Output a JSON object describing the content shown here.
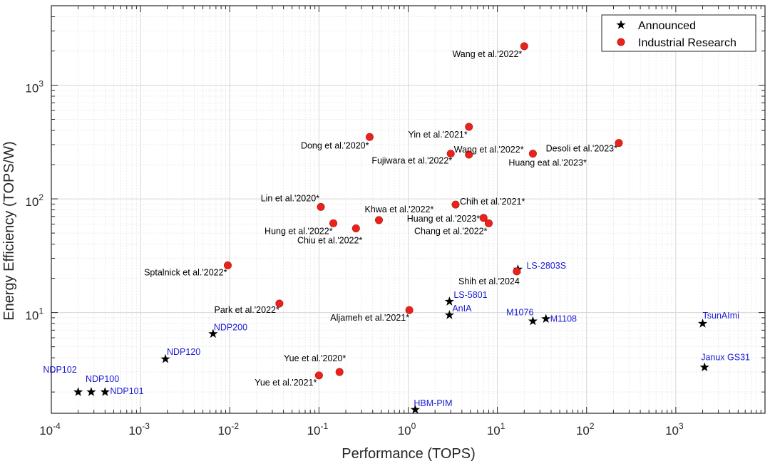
{
  "chart_data": {
    "type": "scatter",
    "title": "",
    "xlabel": "Performance (TOPS)",
    "ylabel": "Energy Efficiency (TOPS/W)",
    "xscale": "log",
    "yscale": "log",
    "xlim": [
      0.0001,
      10000
    ],
    "ylim": [
      1.3,
      5000
    ],
    "grid": true,
    "minor_grid": true,
    "x_ticks": [
      {
        "base": "10",
        "exp": "-4",
        "value": 0.0001
      },
      {
        "base": "10",
        "exp": "-3",
        "value": 0.001
      },
      {
        "base": "10",
        "exp": "-2",
        "value": 0.01
      },
      {
        "base": "10",
        "exp": "-1",
        "value": 0.1
      },
      {
        "base": "10",
        "exp": "0",
        "value": 1
      },
      {
        "base": "10",
        "exp": "1",
        "value": 10
      },
      {
        "base": "10",
        "exp": "2",
        "value": 100
      },
      {
        "base": "10",
        "exp": "3",
        "value": 1000
      }
    ],
    "y_ticks": [
      {
        "base": "10",
        "exp": "1",
        "value": 10
      },
      {
        "base": "10",
        "exp": "2",
        "value": 100
      },
      {
        "base": "10",
        "exp": "3",
        "value": 1000
      }
    ],
    "legend": {
      "position": "top-right",
      "entries": [
        {
          "label": "Announced",
          "marker": "star",
          "color": "#000000"
        },
        {
          "label": "Industrial Research",
          "marker": "circle",
          "color": "#e8231b"
        }
      ]
    },
    "series": [
      {
        "name": "Announced",
        "marker": "star",
        "color": "#000000",
        "label_color": "#1a1ad6",
        "points": [
          {
            "label": "NDP102",
            "x": 0.0002,
            "y": 2.0,
            "anchor": "end",
            "dx": -2,
            "dy": -27
          },
          {
            "label": "NDP100",
            "x": 0.00028,
            "y": 2.0,
            "anchor": "start",
            "dx": -8,
            "dy": -14
          },
          {
            "label": "NDP101",
            "x": 0.0004,
            "y": 2.0,
            "anchor": "start",
            "dx": 7,
            "dy": 3
          },
          {
            "label": "NDP120",
            "x": 0.0019,
            "y": 3.9,
            "anchor": "start",
            "dx": 2,
            "dy": -6
          },
          {
            "label": "NDP200",
            "x": 0.0065,
            "y": 6.5,
            "anchor": "start",
            "dx": 1,
            "dy": -5
          },
          {
            "label": "HBM-PIM",
            "x": 1.2,
            "y": 1.4,
            "anchor": "start",
            "dx": -2,
            "dy": -5
          },
          {
            "label": "LS-5801",
            "x": 2.9,
            "y": 12.5,
            "anchor": "start",
            "dx": 6,
            "dy": -5
          },
          {
            "label": "AnIA",
            "x": 2.9,
            "y": 9.5,
            "anchor": "start",
            "dx": 4,
            "dy": -5
          },
          {
            "label": "LS-2803S",
            "x": 17,
            "y": 24,
            "anchor": "start",
            "dx": 12,
            "dy": -1
          },
          {
            "label": "M1076",
            "x": 25,
            "y": 8.4,
            "anchor": "end",
            "dx": 1,
            "dy": -8
          },
          {
            "label": "M1108",
            "x": 35,
            "y": 8.8,
            "anchor": "start",
            "dx": 6,
            "dy": 4
          },
          {
            "label": "TsunAImi",
            "x": 2000,
            "y": 8.0,
            "anchor": "start",
            "dx": 0,
            "dy": -7
          },
          {
            "label": "Janux GS31",
            "x": 2100,
            "y": 3.3,
            "anchor": "start",
            "dx": -5,
            "dy": -10
          }
        ]
      },
      {
        "name": "Industrial Research",
        "marker": "circle",
        "color": "#e8231b",
        "label_color": "#000000",
        "points": [
          {
            "label": "Wang et al.'2022*",
            "x": 20,
            "y": 2200,
            "anchor": "end",
            "dx": -3,
            "dy": 15
          },
          {
            "label": "Dong et al.'2020*",
            "x": 0.37,
            "y": 350,
            "anchor": "end",
            "dx": -1,
            "dy": 16
          },
          {
            "label": "Yin et al.'2021*",
            "x": 4.8,
            "y": 430,
            "anchor": "end",
            "dx": -2,
            "dy": 15
          },
          {
            "label": "Fujiwara et al.'2022*",
            "x": 3.0,
            "y": 250,
            "anchor": "end",
            "dx": 2,
            "dy": 14
          },
          {
            "label": "Wang et al.'2022*",
            "x": 4.8,
            "y": 245,
            "anchor": "start",
            "dx": -21,
            "dy": -3
          },
          {
            "label": "Desoli et al.'2023*",
            "x": 230,
            "y": 310,
            "anchor": "end",
            "dx": -2,
            "dy": 12
          },
          {
            "label": "Huang eat al.'2023*",
            "x": 25,
            "y": 250,
            "anchor": "start",
            "dx": -34,
            "dy": 17
          },
          {
            "label": "Lin et al.'2020*",
            "x": 0.105,
            "y": 85,
            "anchor": "end",
            "dx": -2,
            "dy": -8
          },
          {
            "label": "Hung et al.'2022*",
            "x": 0.145,
            "y": 61,
            "anchor": "end",
            "dx": -1,
            "dy": 15
          },
          {
            "label": "Chiu et al.'2022*",
            "x": 0.26,
            "y": 55,
            "anchor": "end",
            "dx": 9,
            "dy": 21
          },
          {
            "label": "Khwa et al.'2022*",
            "x": 0.47,
            "y": 65,
            "anchor": "start",
            "dx": -20,
            "dy": -11
          },
          {
            "label": "Chih et al.'2021*",
            "x": 3.4,
            "y": 89,
            "anchor": "start",
            "dx": 6,
            "dy": 0
          },
          {
            "label": "Huang et al.'2023*",
            "x": 7.0,
            "y": 68,
            "anchor": "end",
            "dx": -5,
            "dy": 5
          },
          {
            "label": "Chang et al.'2022*",
            "x": 8.0,
            "y": 61,
            "anchor": "end",
            "dx": -2,
            "dy": 15
          },
          {
            "label": "Sptalnick et al.'2022*",
            "x": 0.0095,
            "y": 26,
            "anchor": "end",
            "dx": -1,
            "dy": 14
          },
          {
            "label": "Shih et al.'2024",
            "x": 16.5,
            "y": 23,
            "anchor": "end",
            "dx": 4,
            "dy": 18
          },
          {
            "label": "Park et al.'2022*",
            "x": 0.036,
            "y": 12,
            "anchor": "end",
            "dx": 0,
            "dy": 13
          },
          {
            "label": "Aljameh et al.'2021*",
            "x": 1.03,
            "y": 10.5,
            "anchor": "end",
            "dx": 0,
            "dy": 15
          },
          {
            "label": "Yue et al.'2020*",
            "x": 0.17,
            "y": 3.0,
            "anchor": "end",
            "dx": 9,
            "dy": -15
          },
          {
            "label": "Yue et al.'2021*",
            "x": 0.1,
            "y": 2.8,
            "anchor": "end",
            "dx": -3,
            "dy": 14
          }
        ]
      }
    ]
  }
}
